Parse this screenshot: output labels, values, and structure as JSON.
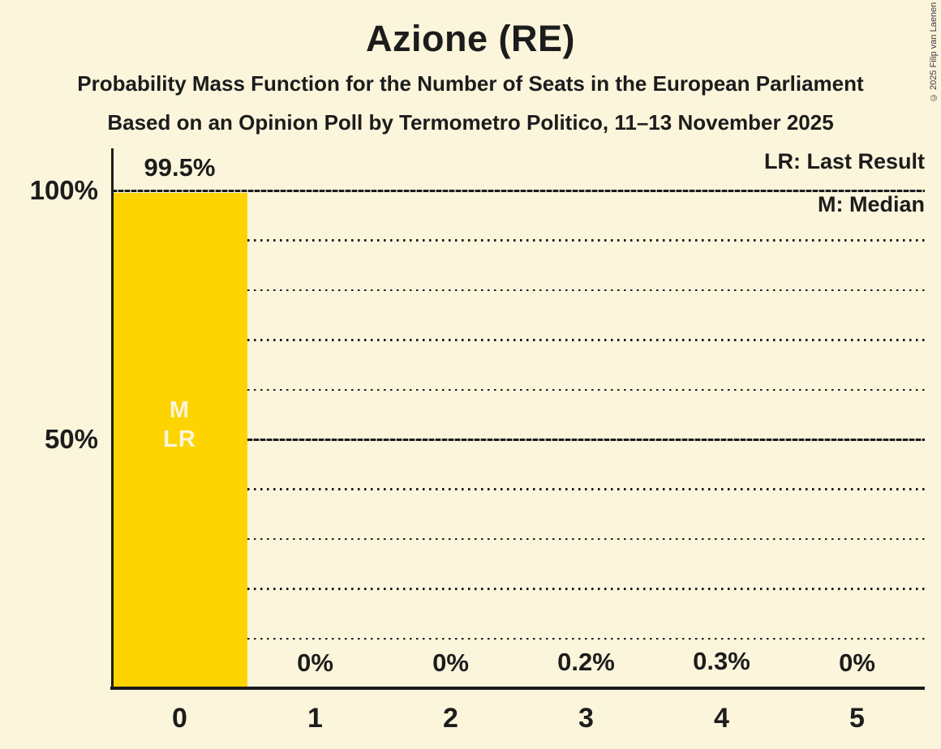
{
  "header": {
    "title": "Azione (RE)",
    "subtitle1": "Probability Mass Function for the Number of Seats in the European Parliament",
    "subtitle2": "Based on an Opinion Poll by Termometro Politico, 11–13 November 2025"
  },
  "copyright": "© 2025 Filip van Laenen",
  "legend": {
    "lr": "LR: Last Result",
    "m": "M: Median"
  },
  "chart_data": {
    "type": "bar",
    "title": "Azione (RE)",
    "categories": [
      "0",
      "1",
      "2",
      "3",
      "4",
      "5"
    ],
    "values": [
      99.5,
      0,
      0,
      0.2,
      0.3,
      0
    ],
    "value_labels": [
      "99.5%",
      "0%",
      "0%",
      "0.2%",
      "0.3%",
      "0%"
    ],
    "ylim": [
      0,
      100
    ],
    "yticks": [
      {
        "percent": 100,
        "label": "100%"
      },
      {
        "percent": 50,
        "label": "50%"
      }
    ],
    "gridlines": {
      "dotted_percents": [
        90,
        80,
        70,
        60,
        40,
        30,
        20,
        10
      ],
      "solid_percents": [
        100,
        50
      ]
    },
    "annotations": [
      {
        "bar_index": 0,
        "lines": [
          "M",
          "LR"
        ]
      }
    ],
    "legend_position": "top-right",
    "colors": {
      "background": "#FBF5DC",
      "bar": "#FDD400",
      "text": "#1C1C1C",
      "annotation_text": "#FBF5DC"
    }
  }
}
